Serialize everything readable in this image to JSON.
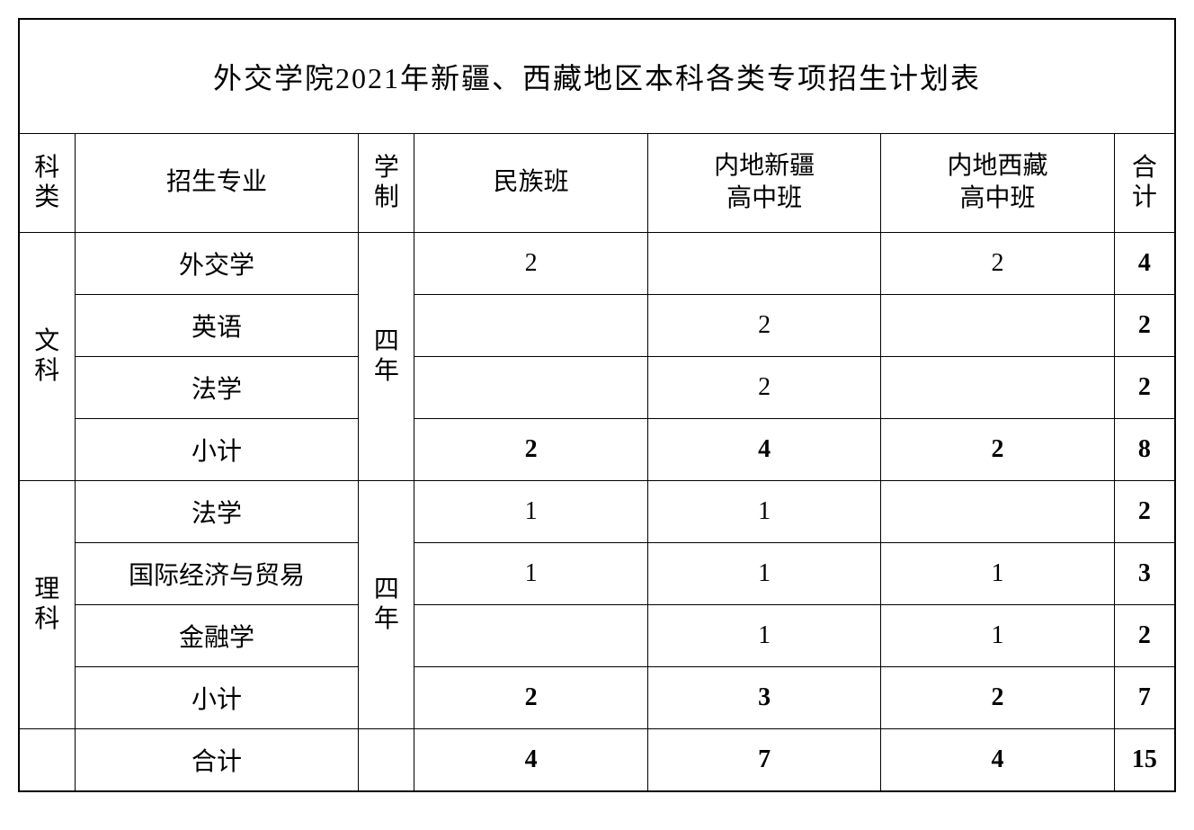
{
  "title": "外交学院2021年新疆、西藏地区本科各类专项招生计划表",
  "headers": {
    "category": "科类",
    "major": "招生专业",
    "duration": "学制",
    "col1": "民族班",
    "col2_line1": "内地新疆",
    "col2_line2": "高中班",
    "col3_line1": "内地西藏",
    "col3_line2": "高中班",
    "total": "合计"
  },
  "wenke": {
    "label_line1": "文",
    "label_line2": "科",
    "duration_line1": "四",
    "duration_line2": "年",
    "rows": [
      {
        "major": "外交学",
        "c1": "2",
        "c2": "",
        "c3": "2",
        "total": "4"
      },
      {
        "major": "英语",
        "c1": "",
        "c2": "2",
        "c3": "",
        "total": "2"
      },
      {
        "major": "法学",
        "c1": "",
        "c2": "2",
        "c3": "",
        "total": "2"
      }
    ],
    "subtotal": {
      "label": "小计",
      "c1": "2",
      "c2": "4",
      "c3": "2",
      "total": "8"
    }
  },
  "like": {
    "label_line1": "理",
    "label_line2": "科",
    "duration_line1": "四",
    "duration_line2": "年",
    "rows": [
      {
        "major": "法学",
        "c1": "1",
        "c2": "1",
        "c3": "",
        "total": "2"
      },
      {
        "major": "国际经济与贸易",
        "c1": "1",
        "c2": "1",
        "c3": "1",
        "total": "3"
      },
      {
        "major": "金融学",
        "c1": "",
        "c2": "1",
        "c3": "1",
        "total": "2"
      }
    ],
    "subtotal": {
      "label": "小计",
      "c1": "2",
      "c2": "3",
      "c3": "2",
      "total": "7"
    }
  },
  "grand_total": {
    "label": "合计",
    "c1": "4",
    "c2": "7",
    "c3": "4",
    "total": "15"
  }
}
